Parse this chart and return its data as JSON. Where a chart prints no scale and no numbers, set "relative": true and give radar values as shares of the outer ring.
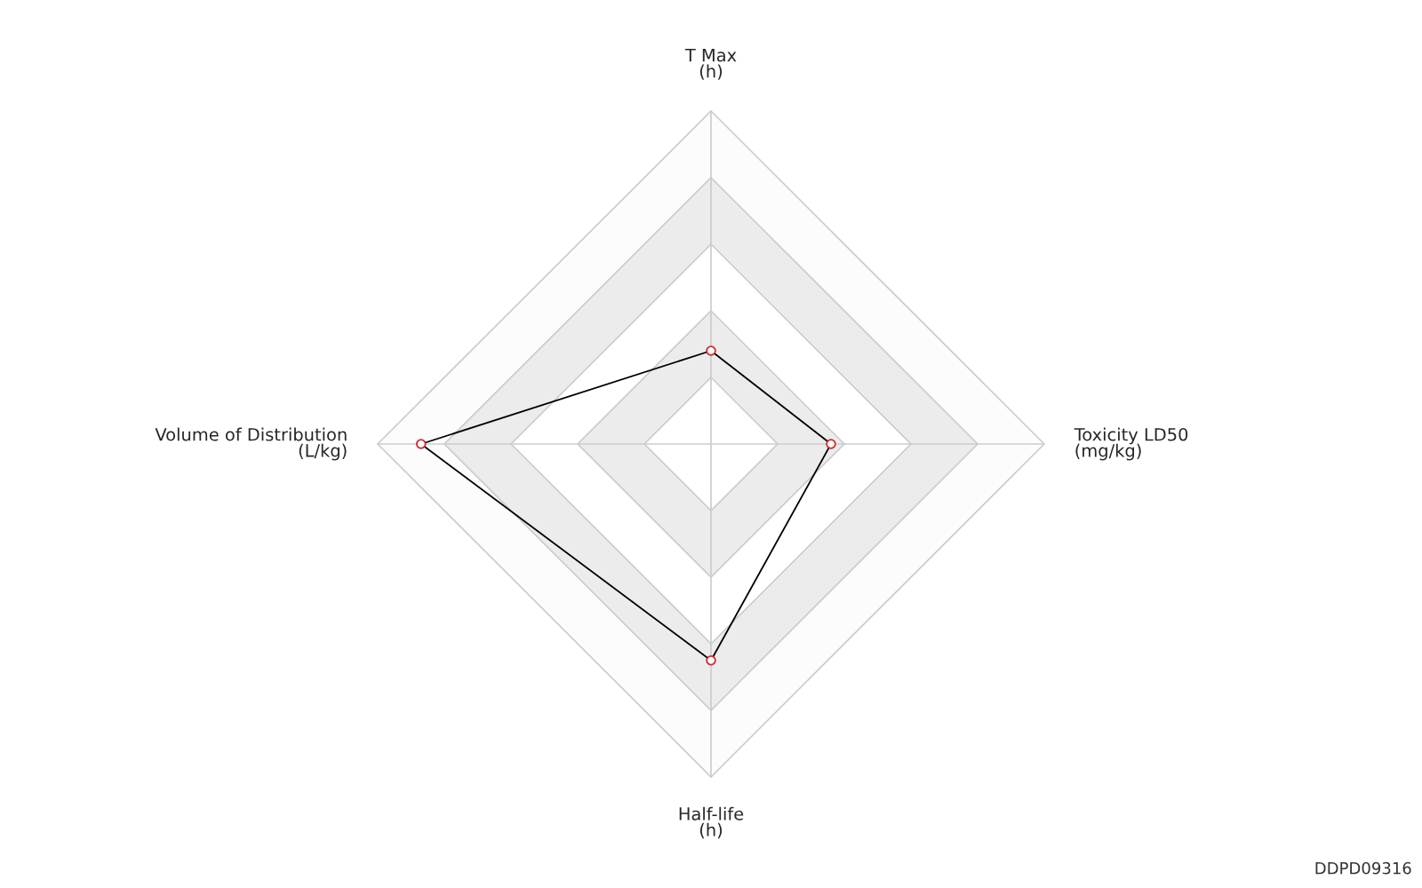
{
  "chart_data": {
    "type": "radar",
    "categories": [
      "T Max\n(h)",
      "Toxicity LD50\n(mg/kg)",
      "Half-life\n(h)",
      "Volume of Distribution\n(L/kg)"
    ],
    "series": [
      {
        "color": "#000000",
        "colors": [
          "#d62728",
          "#d62728",
          "#d62728",
          "#d62728"
        ],
        "values": [
          0.28,
          0.36,
          0.65,
          0.87
        ]
      }
    ],
    "relative": true,
    "grid": true,
    "marker": "circle",
    "annotations": [
      "DDPD09316"
    ]
  }
}
